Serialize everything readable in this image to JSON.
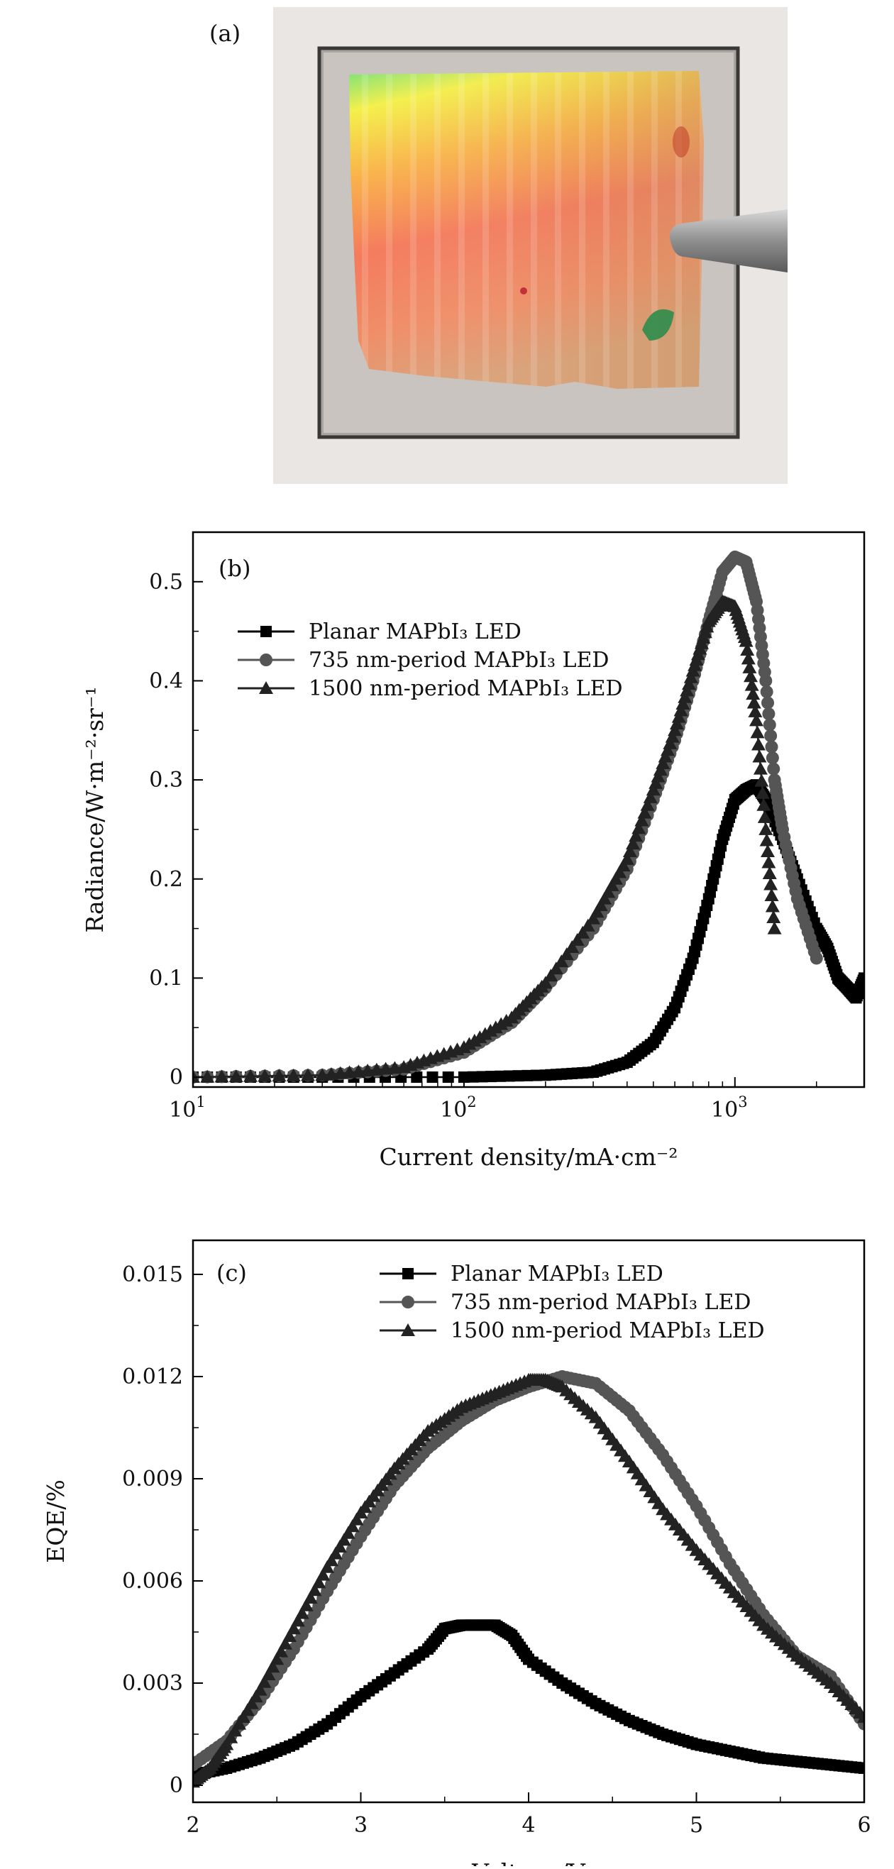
{
  "figure": {
    "panels": [
      {
        "label": "(a)"
      },
      {
        "label": "(b)"
      },
      {
        "label": "(c)"
      }
    ]
  },
  "colors": {
    "planar": "#000000",
    "p735": "#555555",
    "p1500": "#222222",
    "photo_frame": "#a8a4a0",
    "photo_background": "#e9e6e3"
  },
  "chart_data": [
    {
      "panel": "(b)",
      "type": "line",
      "xlabel": "Current density/mA·cm⁻²",
      "ylabel": "Radiance/W·m⁻²·sr⁻¹",
      "xscale": "log",
      "xlim": [
        10,
        3000
      ],
      "ylim": [
        -0.01,
        0.55
      ],
      "xticks": [
        {
          "value": 10,
          "base": "10",
          "exp": "1"
        },
        {
          "value": 100,
          "base": "10",
          "exp": "2"
        },
        {
          "value": 1000,
          "base": "10",
          "exp": "3"
        }
      ],
      "yticks": [
        {
          "value": 0,
          "label": "0"
        },
        {
          "value": 0.1,
          "label": "0.1"
        },
        {
          "value": 0.2,
          "label": "0.2"
        },
        {
          "value": 0.3,
          "label": "0.3"
        },
        {
          "value": 0.4,
          "label": "0.4"
        },
        {
          "value": 0.5,
          "label": "0.5"
        }
      ],
      "legend": "top-left",
      "series": [
        {
          "name": "Planar MAPbI₃ LED",
          "marker": "square",
          "x": [
            10,
            30,
            100,
            200,
            300,
            400,
            500,
            600,
            700,
            800,
            900,
            1000,
            1100,
            1200,
            1300,
            1500,
            1700,
            2000,
            2200,
            2400,
            2600,
            2800,
            3000
          ],
          "y": [
            0,
            0,
            0,
            0.002,
            0.005,
            0.015,
            0.035,
            0.07,
            0.12,
            0.18,
            0.24,
            0.28,
            0.29,
            0.295,
            0.28,
            0.24,
            0.2,
            0.15,
            0.13,
            0.1,
            0.09,
            0.08,
            0.1
          ]
        },
        {
          "name": "735 nm-period MAPbI₃ LED",
          "marker": "circle",
          "x": [
            10,
            30,
            60,
            100,
            150,
            200,
            300,
            400,
            500,
            600,
            700,
            800,
            900,
            1000,
            1100,
            1200,
            1300,
            1400,
            1500,
            1700,
            2000
          ],
          "y": [
            0,
            0.002,
            0.008,
            0.025,
            0.055,
            0.09,
            0.15,
            0.21,
            0.28,
            0.34,
            0.4,
            0.46,
            0.51,
            0.525,
            0.52,
            0.48,
            0.4,
            0.3,
            0.25,
            0.18,
            0.12
          ]
        },
        {
          "name": "1500 nm-period MAPbI₃ LED",
          "marker": "triangle",
          "x": [
            10,
            30,
            60,
            100,
            150,
            200,
            300,
            400,
            500,
            600,
            700,
            800,
            900,
            1000,
            1100,
            1200,
            1300,
            1400
          ],
          "y": [
            0,
            0.002,
            0.01,
            0.03,
            0.06,
            0.095,
            0.16,
            0.22,
            0.29,
            0.35,
            0.41,
            0.46,
            0.48,
            0.475,
            0.44,
            0.36,
            0.25,
            0.15
          ]
        }
      ]
    },
    {
      "panel": "(c)",
      "type": "line",
      "xlabel": "Voltage/V",
      "ylabel": "EQE/%",
      "xlim": [
        2,
        6
      ],
      "ylim": [
        -0.0005,
        0.016
      ],
      "xticks": [
        {
          "value": 2,
          "label": "2"
        },
        {
          "value": 3,
          "label": "3"
        },
        {
          "value": 4,
          "label": "4"
        },
        {
          "value": 5,
          "label": "5"
        },
        {
          "value": 6,
          "label": "6"
        }
      ],
      "yticks": [
        {
          "value": 0,
          "label": "0"
        },
        {
          "value": 0.003,
          "label": "0.003"
        },
        {
          "value": 0.006,
          "label": "0.006"
        },
        {
          "value": 0.009,
          "label": "0.009"
        },
        {
          "value": 0.012,
          "label": "0.012"
        },
        {
          "value": 0.015,
          "label": "0.015"
        }
      ],
      "legend": "top-right",
      "series": [
        {
          "name": "Planar MAPbI₃ LED",
          "marker": "square",
          "x": [
            2.0,
            2.2,
            2.4,
            2.6,
            2.8,
            3.0,
            3.2,
            3.4,
            3.5,
            3.6,
            3.7,
            3.8,
            3.9,
            4.0,
            4.2,
            4.4,
            4.6,
            4.8,
            5.0,
            5.2,
            5.4,
            5.6,
            5.8,
            6.0
          ],
          "y": [
            0.0003,
            0.0005,
            0.0008,
            0.0012,
            0.0018,
            0.0026,
            0.0033,
            0.004,
            0.0046,
            0.0047,
            0.0047,
            0.0047,
            0.0044,
            0.0037,
            0.003,
            0.0024,
            0.0019,
            0.0015,
            0.0012,
            0.001,
            0.0008,
            0.0007,
            0.0006,
            0.0005
          ]
        },
        {
          "name": "735 nm-period MAPbI₃ LED",
          "marker": "circle",
          "x": [
            2.0,
            2.2,
            2.4,
            2.6,
            2.8,
            3.0,
            3.2,
            3.4,
            3.6,
            3.8,
            4.0,
            4.2,
            4.4,
            4.6,
            4.8,
            5.0,
            5.2,
            5.4,
            5.6,
            5.8,
            6.0
          ],
          "y": [
            0.0006,
            0.0013,
            0.0025,
            0.004,
            0.0057,
            0.0073,
            0.0088,
            0.0099,
            0.0107,
            0.0113,
            0.0117,
            0.012,
            0.0118,
            0.011,
            0.0097,
            0.0082,
            0.0065,
            0.005,
            0.0038,
            0.0032,
            0.0018
          ]
        },
        {
          "name": "1500 nm-period MAPbI₃ LED",
          "marker": "triangle",
          "x": [
            2.0,
            2.1,
            2.2,
            2.4,
            2.6,
            2.8,
            3.0,
            3.2,
            3.4,
            3.6,
            3.8,
            4.0,
            4.1,
            4.2,
            4.4,
            4.6,
            4.8,
            5.0,
            5.2,
            5.4,
            5.6,
            5.8,
            6.0
          ],
          "y": [
            0.0001,
            0.0005,
            0.0012,
            0.0028,
            0.0046,
            0.0064,
            0.008,
            0.0093,
            0.0104,
            0.0111,
            0.0115,
            0.0119,
            0.0119,
            0.0117,
            0.0108,
            0.0095,
            0.0081,
            0.0069,
            0.0058,
            0.0047,
            0.0038,
            0.003,
            0.002
          ]
        }
      ]
    }
  ]
}
